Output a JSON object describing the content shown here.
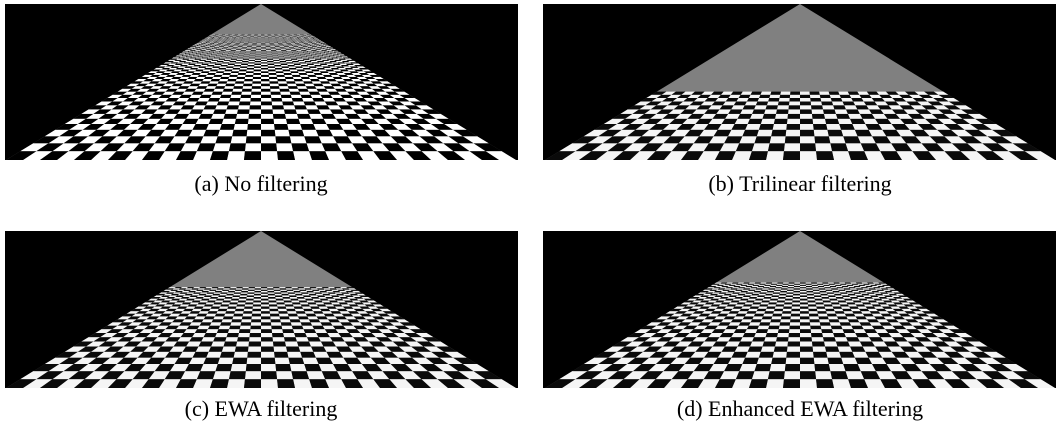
{
  "figure": {
    "panels": [
      {
        "caption": "(a) No filtering"
      },
      {
        "caption": "(b) Trilinear filtering"
      },
      {
        "caption": "(c) EWA filtering"
      },
      {
        "caption": "(d) Enhanced EWA filtering"
      }
    ]
  }
}
